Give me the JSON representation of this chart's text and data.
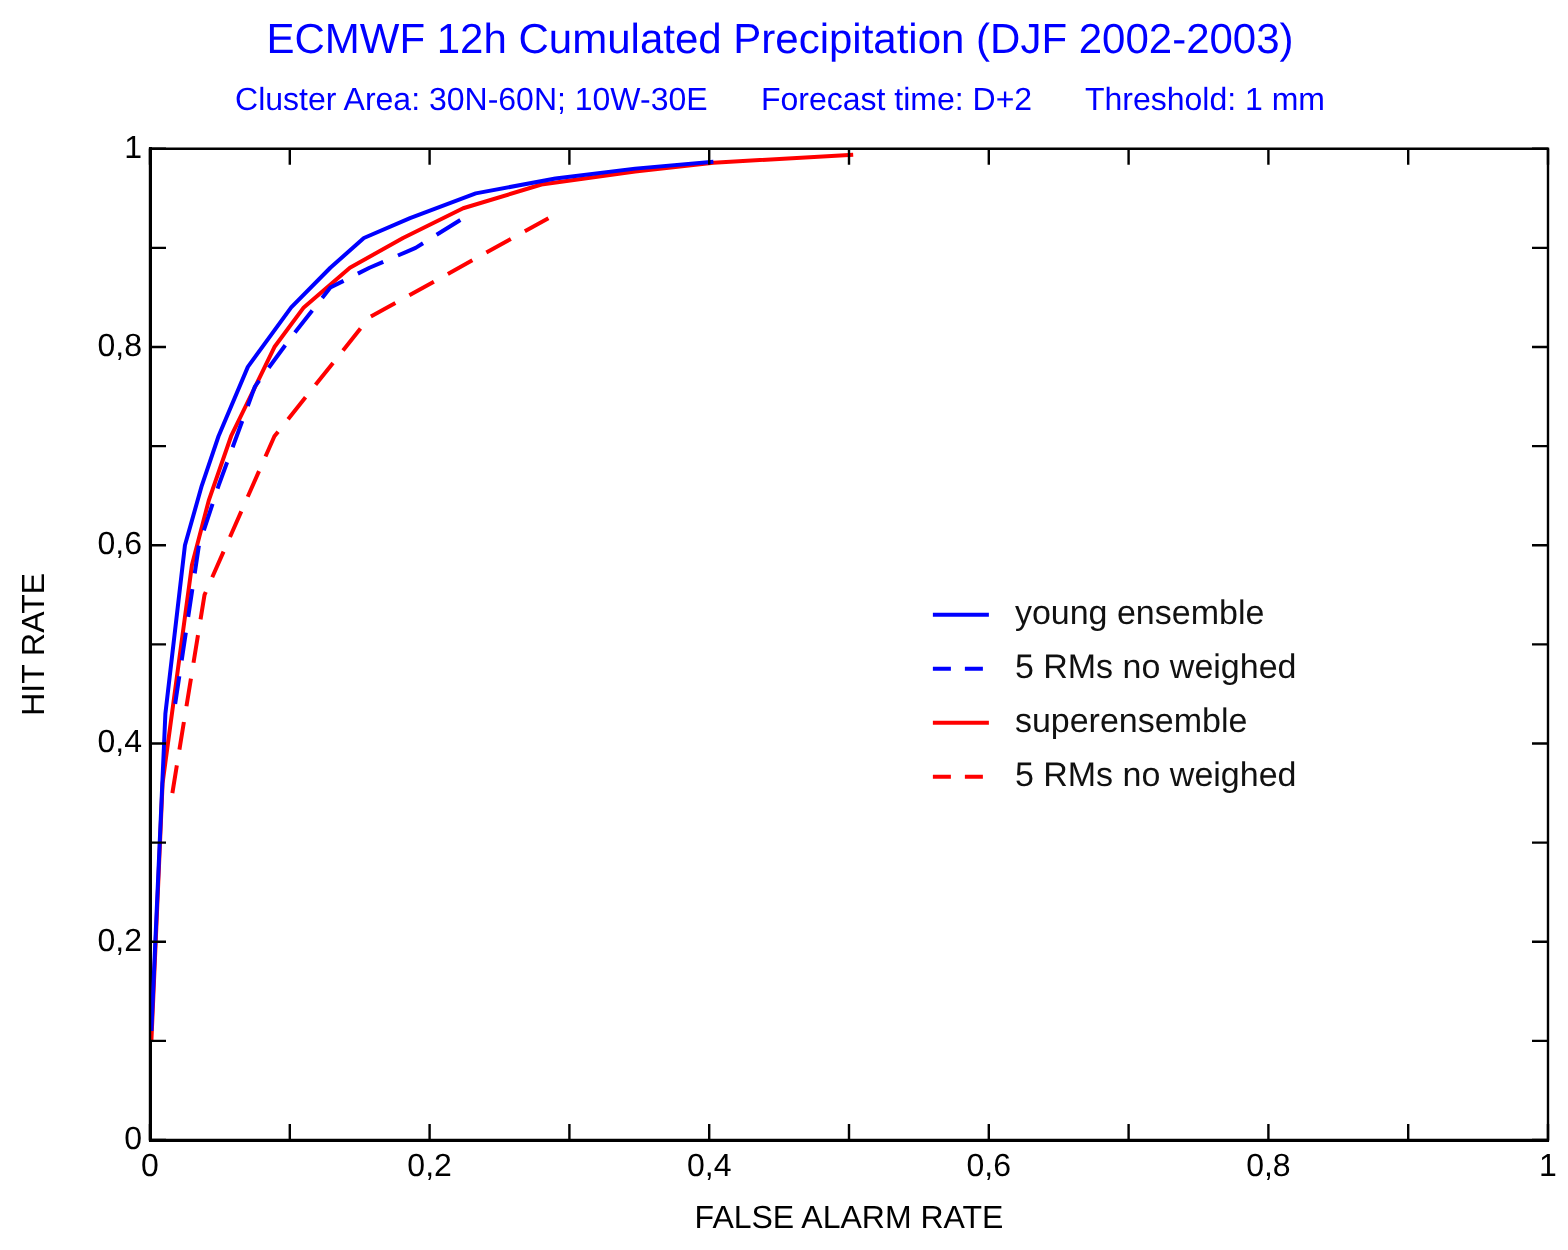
{
  "chart_data": {
    "type": "line",
    "title": "ECMWF 12h Cumulated Precipitation (DJF 2002-2003)",
    "subtitle": "Cluster Area: 30N-60N; 10W-30E      Forecast time: D+2      Threshold: 1 mm",
    "xlabel": "FALSE ALARM RATE",
    "ylabel": "HIT RATE",
    "xlim": [
      0,
      1
    ],
    "ylim": [
      0,
      1
    ],
    "xticks": [
      {
        "value": 0,
        "label": "0"
      },
      {
        "value": 0.1,
        "label": null
      },
      {
        "value": 0.2,
        "label": "0,2"
      },
      {
        "value": 0.3,
        "label": null
      },
      {
        "value": 0.4,
        "label": "0,4"
      },
      {
        "value": 0.5,
        "label": null
      },
      {
        "value": 0.6,
        "label": "0,6"
      },
      {
        "value": 0.7,
        "label": null
      },
      {
        "value": 0.8,
        "label": "0,8"
      },
      {
        "value": 0.9,
        "label": null
      },
      {
        "value": 1,
        "label": "1"
      }
    ],
    "yticks": [
      {
        "value": 0,
        "label": "0"
      },
      {
        "value": 0.1,
        "label": null
      },
      {
        "value": 0.2,
        "label": "0,2"
      },
      {
        "value": 0.3,
        "label": null
      },
      {
        "value": 0.4,
        "label": "0,4"
      },
      {
        "value": 0.5,
        "label": null
      },
      {
        "value": 0.6,
        "label": "0,6"
      },
      {
        "value": 0.7,
        "label": null
      },
      {
        "value": 0.8,
        "label": "0,8"
      },
      {
        "value": 0.9,
        "label": null
      },
      {
        "value": 1,
        "label": "1"
      }
    ],
    "grid": false,
    "legend": "right",
    "marker": "none",
    "series": [
      {
        "name": "young ensemble",
        "color": "#0000ff",
        "line_style": "solid",
        "x": [
          0.001,
          0.011,
          0.025,
          0.037,
          0.049,
          0.07,
          0.101,
          0.129,
          0.153,
          0.186,
          0.233,
          0.29,
          0.347,
          0.403
        ],
        "values": [
          0.11,
          0.43,
          0.6,
          0.66,
          0.71,
          0.78,
          0.84,
          0.88,
          0.91,
          0.93,
          0.955,
          0.97,
          0.98,
          0.987
        ]
      },
      {
        "name": "5 RMs no weighed",
        "color": "#0000ff",
        "line_style": "dashed",
        "x": [
          0.018,
          0.035,
          0.049,
          0.075,
          0.101,
          0.129,
          0.157,
          0.19,
          0.224
        ],
        "values": [
          0.44,
          0.6,
          0.66,
          0.76,
          0.81,
          0.86,
          0.88,
          0.9,
          0.93
        ]
      },
      {
        "name": "superensemble",
        "color": "#ff0000",
        "line_style": "solid",
        "x": [
          0.001,
          0.009,
          0.03,
          0.042,
          0.058,
          0.089,
          0.11,
          0.143,
          0.181,
          0.224,
          0.28,
          0.347,
          0.403,
          0.503
        ],
        "values": [
          0.1,
          0.36,
          0.58,
          0.645,
          0.71,
          0.8,
          0.84,
          0.88,
          0.91,
          0.94,
          0.964,
          0.977,
          0.986,
          0.994
        ]
      },
      {
        "name": "5 RMs no weighed",
        "color": "#ff0000",
        "line_style": "dashed",
        "x": [
          0.016,
          0.039,
          0.089,
          0.157,
          0.285
        ],
        "values": [
          0.35,
          0.55,
          0.71,
          0.83,
          0.93
        ]
      }
    ]
  }
}
